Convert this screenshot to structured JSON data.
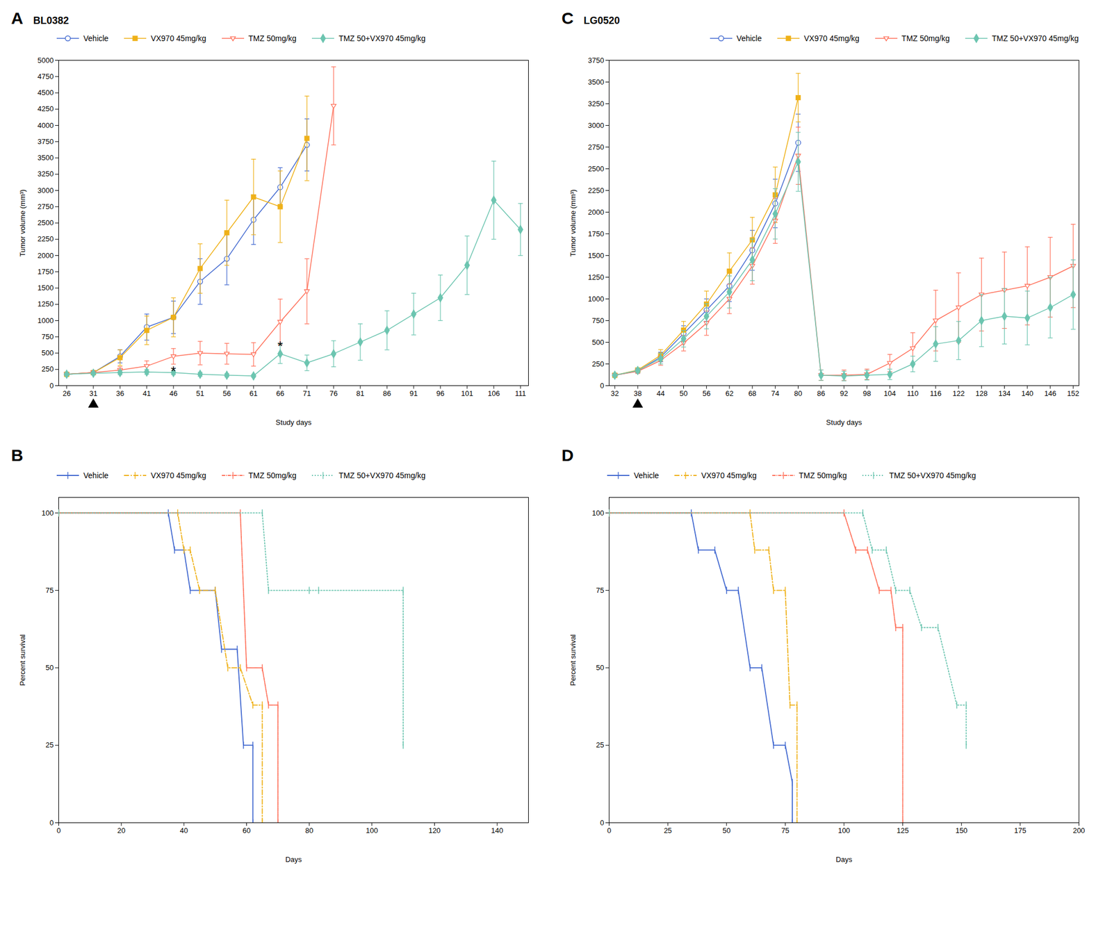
{
  "chart_data": [
    {
      "type": "line",
      "panel_label": "A",
      "title": "BL0382",
      "xlabel": "Study days",
      "ylabel": "Tumor volume (mm³)",
      "xlim": [
        24.5,
        112.5
      ],
      "xticks": [
        26,
        31,
        36,
        41,
        46,
        51,
        56,
        61,
        66,
        71,
        76,
        81,
        86,
        91,
        96,
        101,
        106,
        111
      ],
      "ylim": [
        0,
        5000
      ],
      "yticks": [
        0,
        250,
        500,
        750,
        1000,
        1250,
        1500,
        1750,
        2000,
        2250,
        2500,
        2750,
        3000,
        3250,
        3500,
        3750,
        4000,
        4250,
        4500,
        4750,
        5000
      ],
      "grid": false,
      "legend": "upper left",
      "annotations": [
        {
          "marker": "triangle",
          "x": 31
        },
        {
          "text": "*",
          "x": 46,
          "y": 150
        },
        {
          "text": "*",
          "x": 66,
          "y": 530
        }
      ],
      "series": [
        {
          "name": "Vehicle",
          "marker": "circle-open",
          "x": [
            26,
            31,
            36,
            41,
            46,
            51,
            56,
            61,
            66,
            71
          ],
          "values": [
            175,
            200,
            450,
            900,
            1050,
            1600,
            1950,
            2550,
            3050,
            3700
          ],
          "yerr": [
            20,
            30,
            100,
            200,
            250,
            350,
            400,
            380,
            300,
            400
          ]
        },
        {
          "name": "VX970 45mg/kg",
          "marker": "square",
          "x": [
            26,
            31,
            36,
            41,
            46,
            51,
            56,
            61,
            66,
            71
          ],
          "values": [
            175,
            200,
            430,
            850,
            1050,
            1800,
            2350,
            2900,
            2750,
            3800
          ],
          "yerr": [
            20,
            30,
            120,
            220,
            300,
            380,
            500,
            580,
            550,
            650
          ]
        },
        {
          "name": "TMZ 50mg/kg",
          "marker": "triangle-down-open",
          "x": [
            26,
            31,
            36,
            41,
            46,
            51,
            56,
            61,
            66,
            71,
            76
          ],
          "values": [
            175,
            200,
            240,
            300,
            450,
            500,
            490,
            480,
            980,
            1450,
            4300
          ],
          "yerr": [
            20,
            25,
            50,
            80,
            120,
            180,
            160,
            180,
            350,
            500,
            600
          ]
        },
        {
          "name": "TMZ 50+VX970 45mg/kg",
          "marker": "diamond",
          "x": [
            26,
            31,
            36,
            41,
            46,
            51,
            56,
            61,
            66,
            71,
            76,
            81,
            86,
            91,
            96,
            101,
            106,
            111
          ],
          "values": [
            175,
            190,
            200,
            210,
            200,
            175,
            160,
            150,
            490,
            350,
            490,
            670,
            850,
            1100,
            1350,
            1850,
            2850,
            2400
          ],
          "yerr": [
            20,
            25,
            30,
            35,
            30,
            30,
            25,
            20,
            150,
            120,
            200,
            280,
            300,
            320,
            350,
            450,
            600,
            400
          ]
        }
      ]
    },
    {
      "type": "line",
      "panel_label": "C",
      "title": "LG0520",
      "xlabel": "Study days",
      "ylabel": "Tumor volume (mm³)",
      "xlim": [
        30.5,
        153.5
      ],
      "xticks": [
        32,
        38,
        44,
        50,
        56,
        62,
        68,
        74,
        80,
        86,
        92,
        98,
        104,
        110,
        116,
        122,
        128,
        134,
        140,
        146,
        152
      ],
      "ylim": [
        0,
        3750
      ],
      "yticks": [
        0,
        250,
        500,
        750,
        1000,
        1250,
        1500,
        1750,
        2000,
        2250,
        2500,
        2750,
        3000,
        3250,
        3500,
        3750
      ],
      "grid": false,
      "legend": "upper right",
      "annotations": [
        {
          "marker": "triangle",
          "x": 38
        }
      ],
      "series": [
        {
          "name": "Vehicle",
          "marker": "circle-open",
          "x": [
            32,
            38,
            44,
            50,
            56,
            62,
            68,
            74,
            80
          ],
          "values": [
            120,
            170,
            330,
            600,
            870,
            1150,
            1560,
            2100,
            2800
          ],
          "yerr": [
            15,
            25,
            55,
            90,
            130,
            180,
            230,
            280,
            330
          ]
        },
        {
          "name": "VX970 45mg/kg",
          "marker": "square",
          "x": [
            32,
            38,
            44,
            50,
            56,
            62,
            68,
            74,
            80
          ],
          "values": [
            120,
            180,
            350,
            640,
            940,
            1320,
            1680,
            2200,
            3320
          ],
          "yerr": [
            15,
            25,
            65,
            100,
            150,
            210,
            260,
            320,
            280
          ]
        },
        {
          "name": "TMZ 50mg/kg",
          "marker": "triangle-down-open",
          "x": [
            32,
            38,
            44,
            50,
            56,
            62,
            68,
            74,
            80,
            86,
            92,
            98,
            104,
            110,
            116,
            122,
            128,
            134,
            140,
            146,
            152
          ],
          "values": [
            120,
            165,
            290,
            490,
            720,
            1000,
            1380,
            1900,
            2650,
            120,
            120,
            130,
            260,
            430,
            750,
            900,
            1050,
            1100,
            1150,
            1250,
            1380
          ],
          "yerr": [
            15,
            25,
            55,
            90,
            140,
            170,
            210,
            260,
            330,
            60,
            60,
            60,
            100,
            180,
            350,
            400,
            420,
            440,
            450,
            460,
            480
          ]
        },
        {
          "name": "TMZ 50+VX970 45mg/kg",
          "marker": "diamond",
          "x": [
            32,
            38,
            44,
            50,
            56,
            62,
            68,
            74,
            80,
            86,
            92,
            98,
            104,
            110,
            116,
            122,
            128,
            134,
            140,
            146,
            152
          ],
          "values": [
            120,
            175,
            310,
            540,
            800,
            1080,
            1450,
            1980,
            2580,
            120,
            110,
            120,
            130,
            250,
            480,
            520,
            750,
            800,
            780,
            900,
            1050
          ],
          "yerr": [
            15,
            25,
            60,
            95,
            145,
            185,
            240,
            290,
            340,
            60,
            55,
            55,
            60,
            90,
            200,
            220,
            300,
            320,
            310,
            350,
            400
          ]
        }
      ]
    },
    {
      "type": "line",
      "panel_label": "B",
      "xlabel": "Days",
      "ylabel": "Percent survival",
      "xlim": [
        0,
        150
      ],
      "xticks": [
        0,
        20,
        40,
        60,
        80,
        100,
        120,
        140
      ],
      "ylim": [
        0,
        105
      ],
      "yticks": [
        0,
        25,
        50,
        75,
        100
      ],
      "grid": false,
      "legend": "upper left",
      "series": [
        {
          "name": "Vehicle",
          "line_style": "solid",
          "marker": "tick",
          "x": [
            0,
            35,
            37,
            40,
            42,
            50,
            52,
            57,
            59,
            62,
            62
          ],
          "values": [
            100,
            100,
            88,
            88,
            75,
            75,
            56,
            56,
            25,
            25,
            0
          ]
        },
        {
          "name": "VX970 45mg/kg",
          "line_style": "dashdot",
          "marker": "tick",
          "x": [
            0,
            38,
            40,
            42,
            45,
            50,
            54,
            58,
            62,
            65,
            65
          ],
          "values": [
            100,
            100,
            88,
            88,
            75,
            75,
            50,
            50,
            38,
            38,
            0
          ]
        },
        {
          "name": "TMZ 50mg/kg",
          "line_style": "dense-dashdot",
          "marker": "tick",
          "x": [
            0,
            58,
            60,
            65,
            67,
            70,
            70
          ],
          "values": [
            100,
            100,
            50,
            50,
            38,
            38,
            0
          ]
        },
        {
          "name": "TMZ 50+VX970 45mg/kg",
          "line_style": "dotted",
          "marker": "tick",
          "x": [
            0,
            65,
            67,
            80,
            83,
            110,
            110
          ],
          "values": [
            100,
            100,
            75,
            75,
            75,
            75,
            25
          ]
        }
      ]
    },
    {
      "type": "line",
      "panel_label": "D",
      "xlabel": "Days",
      "ylabel": "Percent survival",
      "xlim": [
        0,
        200
      ],
      "xticks": [
        0,
        25,
        50,
        75,
        100,
        125,
        150,
        175,
        200
      ],
      "ylim": [
        0,
        105
      ],
      "yticks": [
        0,
        25,
        50,
        75,
        100
      ],
      "grid": false,
      "legend": "upper left",
      "series": [
        {
          "name": "Vehicle",
          "line_style": "solid",
          "marker": "tick",
          "x": [
            0,
            35,
            38,
            45,
            50,
            55,
            60,
            65,
            70,
            75,
            78,
            78
          ],
          "values": [
            100,
            100,
            88,
            88,
            75,
            75,
            50,
            50,
            25,
            25,
            13,
            0
          ]
        },
        {
          "name": "VX970 45mg/kg",
          "line_style": "dashdot",
          "marker": "tick",
          "x": [
            0,
            60,
            62,
            68,
            70,
            75,
            77,
            80,
            80
          ],
          "values": [
            100,
            100,
            88,
            88,
            75,
            75,
            38,
            38,
            0
          ]
        },
        {
          "name": "TMZ 50mg/kg",
          "line_style": "dense-dashdot",
          "marker": "tick",
          "x": [
            0,
            100,
            105,
            110,
            115,
            120,
            122,
            125,
            125
          ],
          "values": [
            100,
            100,
            88,
            88,
            75,
            75,
            63,
            63,
            0
          ]
        },
        {
          "name": "TMZ 50+VX970 45mg/kg",
          "line_style": "dotted",
          "marker": "tick",
          "x": [
            0,
            108,
            112,
            118,
            122,
            128,
            133,
            140,
            148,
            152,
            152
          ],
          "values": [
            100,
            100,
            88,
            88,
            75,
            75,
            63,
            63,
            38,
            38,
            25
          ]
        }
      ]
    }
  ]
}
